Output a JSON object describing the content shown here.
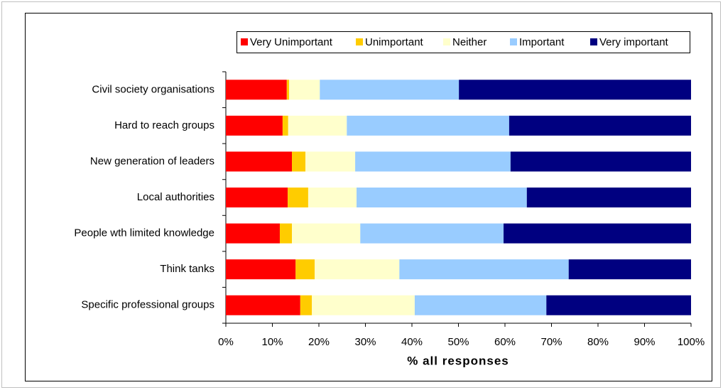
{
  "chart_data": {
    "type": "stacked-barh",
    "xlabel": "% all responses",
    "categories": [
      "Civil society organisations",
      "Hard to reach groups",
      "New generation of leaders",
      "Local authorities",
      "People wth limited knowledge",
      "Think tanks",
      "Specific professional groups"
    ],
    "series": [
      {
        "name": "Very Unimportant",
        "color": "#ff0000",
        "values": [
          13.1,
          12.2,
          14.2,
          13.3,
          11.6,
          15.0,
          16.0
        ]
      },
      {
        "name": "Unimportant",
        "color": "#ffcc00",
        "values": [
          0.5,
          1.2,
          2.9,
          4.4,
          2.6,
          4.1,
          2.5
        ]
      },
      {
        "name": "Neither",
        "color": "#ffffcc",
        "values": [
          6.6,
          12.6,
          10.7,
          10.4,
          14.7,
          18.2,
          22.1
        ]
      },
      {
        "name": "Important",
        "color": "#99ccff",
        "values": [
          29.9,
          34.9,
          33.4,
          36.6,
          30.8,
          36.4,
          28.3
        ]
      },
      {
        "name": "Very important",
        "color": "#000080",
        "values": [
          49.9,
          39.1,
          38.8,
          35.3,
          40.3,
          26.3,
          31.1
        ]
      }
    ],
    "xlim": [
      0,
      100
    ],
    "xticks": [
      {
        "value": 0,
        "label": "0%"
      },
      {
        "value": 10,
        "label": "10%"
      },
      {
        "value": 20,
        "label": "20%"
      },
      {
        "value": 30,
        "label": "30%"
      },
      {
        "value": 40,
        "label": "40%"
      },
      {
        "value": 50,
        "label": "50%"
      },
      {
        "value": 60,
        "label": "60%"
      },
      {
        "value": 70,
        "label": "70%"
      },
      {
        "value": 80,
        "label": "80%"
      },
      {
        "value": 90,
        "label": "90%"
      },
      {
        "value": 100,
        "label": "100%"
      }
    ],
    "legend": "top"
  }
}
